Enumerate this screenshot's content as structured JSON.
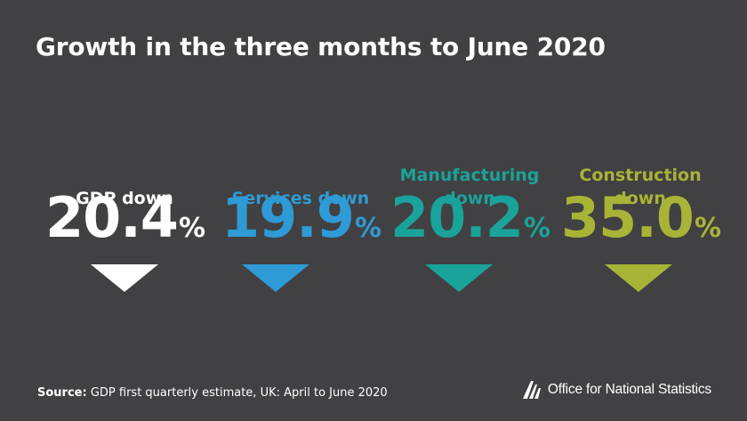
{
  "title": "Growth in the three months to June 2020",
  "stats": [
    {
      "label": "GDP down",
      "value": "20.4",
      "unit": "%",
      "color": "#ffffff"
    },
    {
      "label": "Services down",
      "value": "19.9",
      "unit": "%",
      "color": "#2e9bd6"
    },
    {
      "label": "Manufacturing\ndown",
      "value": "20.2",
      "unit": "%",
      "color": "#1aa39a"
    },
    {
      "label": "Construction\ndown",
      "value": "35.0",
      "unit": "%",
      "color": "#a8b436"
    }
  ],
  "source": {
    "prefix": "Source:",
    "text": "GDP first quarterly estimate, UK: April to June 2020"
  },
  "logo": {
    "text": "Office for National Statistics"
  }
}
